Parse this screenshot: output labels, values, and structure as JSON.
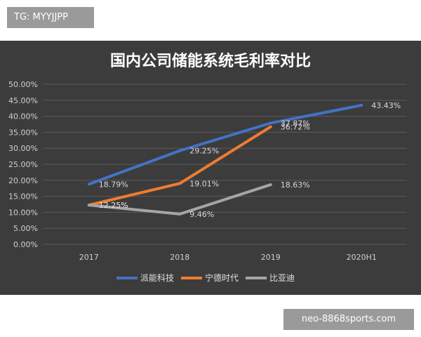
{
  "top_badge": "TG: MYYJJPP",
  "bottom_badge": "neo-8868sports.com",
  "chart_data": {
    "type": "line",
    "title": "国内公司储能系统毛利率对比",
    "categories": [
      "2017",
      "2018",
      "2019",
      "2020H1"
    ],
    "ylim": [
      0,
      50
    ],
    "ytick_labels": [
      "0.00%",
      "5.00%",
      "10.00%",
      "15.00%",
      "20.00%",
      "25.00%",
      "30.00%",
      "35.00%",
      "40.00%",
      "45.00%",
      "50.00%"
    ],
    "grid": true,
    "legend_position": "bottom",
    "background_color": "#3c3c3c",
    "series": [
      {
        "name": "派能科技",
        "color": "#4472c4",
        "values": [
          18.79,
          29.25,
          37.87,
          43.43
        ],
        "labels": [
          "18.79%",
          "29.25%",
          "37.87%",
          "43.43%"
        ]
      },
      {
        "name": "宁德时代",
        "color": "#ed7d31",
        "values": [
          12.25,
          19.01,
          36.72,
          null
        ],
        "labels": [
          "12.25%",
          "19.01%",
          "36.72%",
          null
        ]
      },
      {
        "name": "比亚迪",
        "color": "#a5a5a5",
        "values": [
          12.25,
          9.46,
          18.63,
          null
        ],
        "labels": [
          "12.25%",
          "9.46%",
          "18.63%",
          null
        ]
      }
    ]
  }
}
